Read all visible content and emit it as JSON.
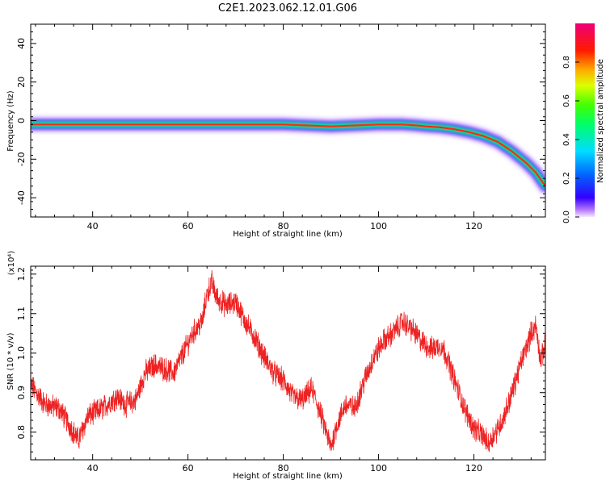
{
  "title": "C2E1.2023.062.12.01.G06",
  "colors": {
    "snr_line": "#ee2222",
    "axis": "#000000"
  },
  "chart_data": [
    {
      "type": "heatmap",
      "xlabel": "Height of straight line (km)",
      "ylabel": "Frequency (Hz)",
      "xlim": [
        27,
        135
      ],
      "ylim": [
        -50,
        50
      ],
      "xticks": [
        40,
        60,
        80,
        100,
        120
      ],
      "xtick_labels": [
        "40",
        "60",
        "80",
        "100",
        "120"
      ],
      "yticks": [
        -40,
        -20,
        0,
        20,
        40
      ],
      "ytick_labels": [
        "-40",
        "-20",
        "0",
        "20",
        "40"
      ],
      "colorbar": {
        "label": "Normalized spectral amplitude",
        "range": [
          0,
          1
        ],
        "ticks": [
          "0.0",
          "0.2",
          "0.4",
          "0.6",
          "0.8"
        ],
        "colormap": "rainbow violet-blue-cyan-green-yellow-red-magenta"
      },
      "doppler_track": {
        "height_km": [
          27,
          30,
          40,
          50,
          60,
          70,
          80,
          85,
          90,
          95,
          100,
          105,
          108,
          110,
          113,
          116,
          119,
          122,
          125,
          128,
          131,
          133,
          135
        ],
        "frequency_hz": [
          -2,
          -2,
          -2,
          -2,
          -2,
          -2,
          -2,
          -2.5,
          -3,
          -2.5,
          -2,
          -2,
          -2.5,
          -3,
          -3.5,
          -4.5,
          -6,
          -8,
          -11,
          -16,
          -22,
          -27,
          -34
        ]
      }
    },
    {
      "type": "line",
      "xlabel": "Height of straight line (km)",
      "ylabel": "SNR (10 * v/v)",
      "y_multiplier": "(x10⁴)",
      "xlim": [
        27,
        135
      ],
      "ylim": [
        0.73,
        1.22
      ],
      "xticks": [
        40,
        60,
        80,
        100,
        120
      ],
      "xtick_labels": [
        "40",
        "60",
        "80",
        "100",
        "120"
      ],
      "yticks": [
        0.8,
        0.9,
        1.0,
        1.1,
        1.2
      ],
      "ytick_labels": [
        "0.8",
        "0.9",
        "1.0",
        "1.1",
        "1.2"
      ],
      "series": [
        {
          "x": [
            27,
            30,
            33,
            36,
            37,
            39,
            42,
            45,
            47,
            49,
            51,
            53,
            55,
            57,
            59,
            61,
            63,
            64,
            65,
            66,
            68,
            70,
            72,
            74,
            76,
            78,
            80,
            82,
            84,
            86,
            88,
            89,
            90,
            91,
            93,
            95,
            97,
            99,
            101,
            103,
            105,
            107,
            109,
            111,
            113,
            114,
            116,
            118,
            120,
            122,
            123,
            124,
            126,
            128,
            130,
            132,
            133,
            134,
            135
          ],
          "y": [
            0.92,
            0.87,
            0.86,
            0.8,
            0.78,
            0.84,
            0.86,
            0.89,
            0.87,
            0.88,
            0.95,
            0.97,
            0.96,
            0.95,
            1.0,
            1.05,
            1.08,
            1.15,
            1.18,
            1.14,
            1.12,
            1.13,
            1.08,
            1.04,
            0.99,
            0.95,
            0.93,
            0.89,
            0.88,
            0.91,
            0.84,
            0.8,
            0.76,
            0.81,
            0.87,
            0.86,
            0.93,
            0.99,
            1.03,
            1.05,
            1.08,
            1.06,
            1.03,
            1.01,
            1.02,
            1.0,
            0.93,
            0.86,
            0.81,
            0.79,
            0.77,
            0.79,
            0.83,
            0.9,
            0.98,
            1.05,
            1.07,
            0.98,
            1.02
          ]
        }
      ]
    }
  ]
}
